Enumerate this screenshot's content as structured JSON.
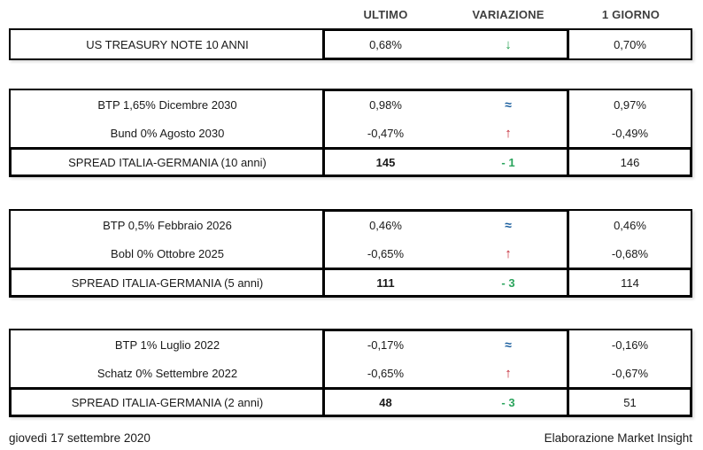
{
  "header": {
    "columns": [
      "ULTIMO",
      "VARIAZIONE",
      "1 GIORNO"
    ]
  },
  "symbols": {
    "up": "↑",
    "down": "↓",
    "flat": "≈"
  },
  "colors": {
    "up_red": "#c32330",
    "down_green": "#22a14f",
    "flat_blue": "#1b5f9e",
    "spread_green": "#2aa45c",
    "border": "#000000",
    "text": "#1a1a1a",
    "header_text": "#3f3f3f"
  },
  "tables": [
    {
      "rows": [
        {
          "label": "US TREASURY NOTE 10 ANNI",
          "ultimo": "0,68%",
          "direction": "down",
          "one_day": "0,70%"
        }
      ],
      "spread": null
    },
    {
      "rows": [
        {
          "label": "BTP 1,65% Dicembre 2030",
          "ultimo": "0,98%",
          "direction": "flat",
          "one_day": "0,97%"
        },
        {
          "label": "Bund 0% Agosto 2030",
          "ultimo": "-0,47%",
          "direction": "up",
          "one_day": "-0,49%"
        }
      ],
      "spread": {
        "label": "SPREAD ITALIA-GERMANIA (10 anni)",
        "ultimo": "145",
        "change": "- 1",
        "one_day": "146"
      }
    },
    {
      "rows": [
        {
          "label": "BTP 0,5% Febbraio 2026",
          "ultimo": "0,46%",
          "direction": "flat",
          "one_day": "0,46%"
        },
        {
          "label": "Bobl 0% Ottobre 2025",
          "ultimo": "-0,65%",
          "direction": "up",
          "one_day": "-0,68%"
        }
      ],
      "spread": {
        "label": "SPREAD ITALIA-GERMANIA (5 anni)",
        "ultimo": "111",
        "change": "- 3",
        "one_day": "114"
      }
    },
    {
      "rows": [
        {
          "label": "BTP 1% Luglio 2022",
          "ultimo": "-0,17%",
          "direction": "flat",
          "one_day": "-0,16%"
        },
        {
          "label": "Schatz 0% Settembre 2022",
          "ultimo": "-0,65%",
          "direction": "up",
          "one_day": "-0,67%"
        }
      ],
      "spread": {
        "label": "SPREAD ITALIA-GERMANIA (2 anni)",
        "ultimo": "48",
        "change": "- 3",
        "one_day": "51"
      }
    }
  ],
  "footer": {
    "date": "giovedì 17 settembre 2020",
    "source": "Elaborazione Market Insight"
  }
}
